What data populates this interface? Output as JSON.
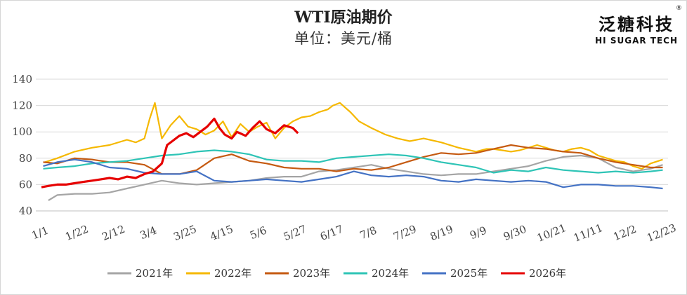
{
  "header": {
    "title": "WTI原油期价",
    "subtitle": "单位：美元/桶"
  },
  "logo": {
    "cn": "泛糖科技",
    "en": "HI SUGAR TECH",
    "mark": "®"
  },
  "chart_data": {
    "type": "line",
    "title": "WTI原油期价",
    "subtitle": "单位：美元/桶",
    "xlabel": "",
    "ylabel": "",
    "ylim": [
      40,
      140
    ],
    "yticks": [
      40,
      60,
      80,
      100,
      120,
      140
    ],
    "xlim": [
      1,
      360
    ],
    "xticks": [
      {
        "day": 1,
        "label": "1/1"
      },
      {
        "day": 22,
        "label": "1/22"
      },
      {
        "day": 43,
        "label": "2/12"
      },
      {
        "day": 63,
        "label": "3/4"
      },
      {
        "day": 84,
        "label": "3/25"
      },
      {
        "day": 105,
        "label": "4/15"
      },
      {
        "day": 126,
        "label": "5/6"
      },
      {
        "day": 147,
        "label": "5/27"
      },
      {
        "day": 168,
        "label": "6/17"
      },
      {
        "day": 189,
        "label": "7/8"
      },
      {
        "day": 210,
        "label": "7/29"
      },
      {
        "day": 231,
        "label": "8/19"
      },
      {
        "day": 252,
        "label": "9/9"
      },
      {
        "day": 273,
        "label": "9/30"
      },
      {
        "day": 294,
        "label": "10/21"
      },
      {
        "day": 315,
        "label": "11/11"
      },
      {
        "day": 336,
        "label": "12/2"
      },
      {
        "day": 357,
        "label": "12/23"
      }
    ],
    "grid": true,
    "legend_position": "bottom",
    "series": [
      {
        "name": "2021年",
        "color": "#a5a5a5",
        "x": [
          5,
          10,
          20,
          30,
          40,
          50,
          60,
          70,
          80,
          90,
          100,
          110,
          120,
          130,
          140,
          150,
          160,
          170,
          180,
          190,
          200,
          210,
          220,
          230,
          240,
          250,
          260,
          270,
          280,
          290,
          300,
          310,
          320,
          330,
          340,
          350,
          357
        ],
        "y": [
          48,
          52,
          53,
          53,
          54,
          57,
          60,
          63,
          61,
          60,
          61,
          62,
          63,
          65,
          66,
          66,
          70,
          71,
          73,
          75,
          72,
          70,
          68,
          67,
          68,
          68,
          70,
          72,
          74,
          78,
          81,
          82,
          80,
          73,
          70,
          72,
          75
        ]
      },
      {
        "name": "2022年",
        "color": "#f5b800",
        "x": [
          3,
          10,
          20,
          30,
          40,
          50,
          55,
          60,
          63,
          66,
          70,
          75,
          80,
          85,
          90,
          95,
          100,
          105,
          110,
          115,
          120,
          125,
          130,
          135,
          140,
          145,
          150,
          155,
          160,
          165,
          168,
          172,
          178,
          183,
          190,
          198,
          205,
          212,
          220,
          230,
          240,
          250,
          256,
          260,
          265,
          270,
          275,
          280,
          285,
          290,
          295,
          300,
          305,
          310,
          315,
          320,
          325,
          330,
          335,
          340,
          345,
          350,
          357
        ],
        "y": [
          77,
          80,
          85,
          88,
          90,
          94,
          92,
          95,
          110,
          122,
          95,
          105,
          112,
          104,
          102,
          98,
          101,
          108,
          96,
          106,
          100,
          104,
          107,
          95,
          103,
          108,
          111,
          112,
          115,
          117,
          120,
          122,
          115,
          108,
          103,
          98,
          95,
          93,
          95,
          92,
          88,
          85,
          87,
          87,
          86,
          85,
          86,
          88,
          90,
          88,
          86,
          85,
          87,
          88,
          86,
          82,
          80,
          78,
          77,
          74,
          72,
          76,
          79
        ]
      },
      {
        "name": "2023年",
        "color": "#c55a11",
        "x": [
          2,
          10,
          20,
          30,
          40,
          50,
          60,
          70,
          80,
          90,
          100,
          110,
          120,
          130,
          140,
          150,
          160,
          170,
          180,
          190,
          200,
          210,
          220,
          230,
          240,
          250,
          260,
          270,
          280,
          290,
          300,
          310,
          320,
          330,
          340,
          350,
          357
        ],
        "y": [
          77,
          76,
          80,
          79,
          77,
          77,
          75,
          68,
          68,
          71,
          80,
          83,
          78,
          76,
          73,
          72,
          72,
          70,
          72,
          71,
          73,
          77,
          81,
          84,
          83,
          84,
          87,
          90,
          88,
          87,
          85,
          84,
          80,
          77,
          75,
          73,
          73
        ]
      },
      {
        "name": "2024年",
        "color": "#2ec4b6",
        "x": [
          2,
          10,
          20,
          30,
          40,
          50,
          60,
          70,
          80,
          90,
          100,
          110,
          120,
          130,
          140,
          150,
          160,
          170,
          180,
          190,
          200,
          210,
          220,
          230,
          240,
          250,
          260,
          270,
          280,
          290,
          300,
          310,
          320,
          330,
          340,
          350,
          357
        ],
        "y": [
          72,
          73,
          74,
          76,
          77,
          78,
          80,
          82,
          83,
          85,
          86,
          85,
          83,
          79,
          78,
          78,
          77,
          80,
          81,
          82,
          83,
          82,
          80,
          77,
          75,
          73,
          69,
          71,
          70,
          73,
          71,
          70,
          69,
          70,
          69,
          70,
          71
        ]
      },
      {
        "name": "2025年",
        "color": "#4472c4",
        "x": [
          2,
          10,
          20,
          30,
          40,
          50,
          60,
          70,
          80,
          90,
          100,
          110,
          120,
          130,
          140,
          150,
          160,
          170,
          180,
          190,
          200,
          210,
          220,
          230,
          240,
          250,
          260,
          270,
          280,
          290,
          300,
          310,
          320,
          330,
          340,
          350,
          357
        ],
        "y": [
          74,
          77,
          79,
          77,
          73,
          72,
          69,
          68,
          68,
          70,
          63,
          62,
          63,
          64,
          63,
          62,
          64,
          66,
          70,
          67,
          66,
          67,
          66,
          63,
          62,
          64,
          63,
          62,
          63,
          62,
          58,
          60,
          60,
          59,
          59,
          58,
          57
        ]
      },
      {
        "name": "2026年",
        "color": "#e60000",
        "x": [
          1,
          5,
          10,
          15,
          20,
          25,
          30,
          35,
          40,
          45,
          50,
          55,
          60,
          65,
          70,
          73,
          76,
          80,
          84,
          88,
          92,
          96,
          100,
          103,
          106,
          110,
          113,
          118,
          122,
          126,
          130,
          135,
          140,
          145,
          148
        ],
        "y": [
          58,
          59,
          60,
          60,
          61,
          62,
          63,
          64,
          65,
          64,
          66,
          65,
          68,
          70,
          76,
          90,
          93,
          97,
          99,
          96,
          100,
          104,
          110,
          103,
          98,
          95,
          100,
          97,
          103,
          108,
          102,
          99,
          105,
          103,
          99
        ]
      }
    ]
  }
}
